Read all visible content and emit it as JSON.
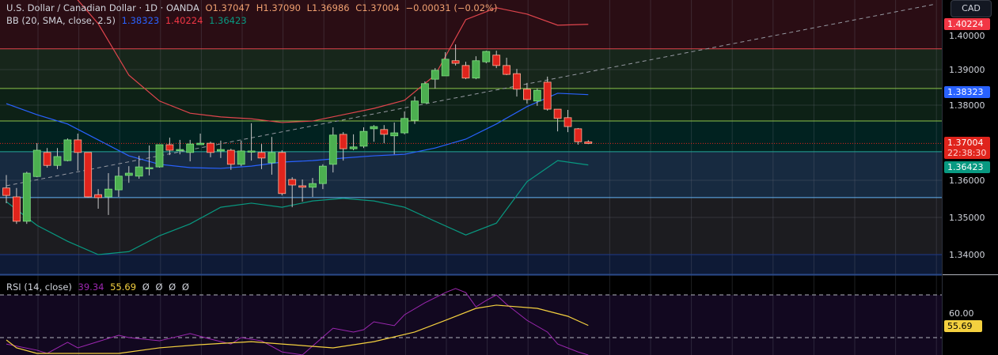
{
  "header": {
    "symbol": "U.S. Dollar / Canadian Dollar · 1D · OANDA",
    "open": "O1.37047",
    "high": "H1.37090",
    "low": "L1.36986",
    "close": "C1.37004",
    "change": "−0.00031 (−0.02%)"
  },
  "bb": {
    "label": "BB (20, SMA, close, 2.5)",
    "basis": "1.38323",
    "upper": "1.40224",
    "lower": "1.36423"
  },
  "rsi": {
    "label": "RSI (14, close)",
    "value": "39.34",
    "ma": "55.69",
    "extra": [
      "Ø",
      "Ø",
      "Ø",
      "Ø"
    ]
  },
  "axis": {
    "currency_button": "CAD",
    "ticks": [
      "1.40000",
      "1.39000",
      "1.38000",
      "1.36000",
      "1.35000",
      "1.34000"
    ],
    "rsi_tick": "60.00",
    "badges": {
      "upper": "1.40224",
      "basis": "1.38323",
      "last": "1.37004",
      "countdown": "22:38:30",
      "lower": "1.36423",
      "rsi_ma": "55.69"
    }
  },
  "colors": {
    "up": "#4caf50",
    "down": "#e0241c",
    "upper": "#e0454d",
    "basis": "#2962ff",
    "lower": "#089981",
    "rsi": "#9c27b0",
    "rsi_ma": "#f4d03f"
  },
  "chart_data": {
    "type": "candlestick",
    "price_range": [
      1.3345,
      1.4222
    ],
    "candles": [
      [
        1.358,
        1.356,
        1.3615,
        1.3539
      ],
      [
        1.3556,
        1.349,
        1.358,
        1.3483
      ],
      [
        1.349,
        1.362,
        1.3624,
        1.3483
      ],
      [
        1.3611,
        1.3682,
        1.3701,
        1.3609
      ],
      [
        1.3676,
        1.3641,
        1.3688,
        1.3635
      ],
      [
        1.3641,
        1.3665,
        1.3688,
        1.3631
      ],
      [
        1.3654,
        1.371,
        1.3714,
        1.3652
      ],
      [
        1.371,
        1.3676,
        1.3727,
        1.3627
      ],
      [
        1.3676,
        1.3556,
        1.3676,
        1.3554
      ],
      [
        1.3562,
        1.3554,
        1.3577,
        1.3524
      ],
      [
        1.3556,
        1.3577,
        1.362,
        1.3507
      ],
      [
        1.3575,
        1.3612,
        1.3637,
        1.3556
      ],
      [
        1.3614,
        1.362,
        1.3639,
        1.3594
      ],
      [
        1.3612,
        1.3637,
        1.3667,
        1.3605
      ],
      [
        1.3635,
        1.3635,
        1.3695,
        1.3614
      ],
      [
        1.3637,
        1.3697,
        1.3697,
        1.3635
      ],
      [
        1.3697,
        1.3682,
        1.3716,
        1.3669
      ],
      [
        1.3684,
        1.3684,
        1.371,
        1.3671
      ],
      [
        1.3676,
        1.3699,
        1.371,
        1.3652
      ],
      [
        1.3697,
        1.3701,
        1.3727,
        1.3697
      ],
      [
        1.3701,
        1.3676,
        1.3705,
        1.3663
      ],
      [
        1.368,
        1.3684,
        1.3708,
        1.3661
      ],
      [
        1.3682,
        1.3644,
        1.3686,
        1.3629
      ],
      [
        1.3644,
        1.368,
        1.3708,
        1.3639
      ],
      [
        1.368,
        1.368,
        1.3755,
        1.3654
      ],
      [
        1.3676,
        1.3661,
        1.3699,
        1.3631
      ],
      [
        1.3648,
        1.3676,
        1.3718,
        1.3616
      ],
      [
        1.3676,
        1.3565,
        1.3682,
        1.356
      ],
      [
        1.3603,
        1.3588,
        1.3609,
        1.3528
      ],
      [
        1.3586,
        1.3582,
        1.3603,
        1.3543
      ],
      [
        1.3582,
        1.3592,
        1.3607,
        1.3556
      ],
      [
        1.3592,
        1.3639,
        1.3644,
        1.3577
      ],
      [
        1.3644,
        1.3723,
        1.3744,
        1.3622
      ],
      [
        1.3725,
        1.3686,
        1.3731,
        1.3654
      ],
      [
        1.3686,
        1.3691,
        1.3725,
        1.3682
      ],
      [
        1.3693,
        1.3733,
        1.3744,
        1.3688
      ],
      [
        1.374,
        1.3746,
        1.375,
        1.3705
      ],
      [
        1.3738,
        1.3725,
        1.375,
        1.3701
      ],
      [
        1.3721,
        1.3729,
        1.3757,
        1.3671
      ],
      [
        1.3729,
        1.3768,
        1.3787,
        1.3725
      ],
      [
        1.3763,
        1.3815,
        1.3827,
        1.3753
      ],
      [
        1.381,
        1.3862,
        1.3868,
        1.381
      ],
      [
        1.3874,
        1.3898,
        1.3904,
        1.3849
      ],
      [
        1.3883,
        1.3928,
        1.3947,
        1.3883
      ],
      [
        1.3924,
        1.3917,
        1.3968,
        1.3911
      ],
      [
        1.3911,
        1.3877,
        1.3921,
        1.3874
      ],
      [
        1.3877,
        1.3924,
        1.3936,
        1.3874
      ],
      [
        1.3921,
        1.3949,
        1.3951,
        1.3917
      ],
      [
        1.3939,
        1.3911,
        1.3951,
        1.3904
      ],
      [
        1.3911,
        1.3887,
        1.3932,
        1.3885
      ],
      [
        1.3889,
        1.3847,
        1.3902,
        1.3827
      ],
      [
        1.3847,
        1.3819,
        1.3864,
        1.3808
      ],
      [
        1.3815,
        1.3844,
        1.3849,
        1.3802
      ],
      [
        1.3866,
        1.3793,
        1.3881,
        1.3789
      ],
      [
        1.3793,
        1.3768,
        1.3791,
        1.3733
      ],
      [
        1.377,
        1.3746,
        1.3791,
        1.3731
      ],
      [
        1.374,
        1.3705,
        1.3742,
        1.3697
      ],
      [
        1.37047,
        1.37004,
        1.3709,
        1.36986
      ]
    ],
    "bollinger": {
      "index": [
        0,
        3,
        6,
        9,
        12,
        15,
        18,
        21,
        24,
        27,
        30,
        33,
        36,
        39,
        42,
        45,
        48,
        51,
        54,
        57
      ],
      "upper": [
        1.418,
        1.416,
        1.412,
        1.4024,
        1.3885,
        1.3815,
        1.3782,
        1.3772,
        1.3767,
        1.3757,
        1.3761,
        1.3778,
        1.3795,
        1.3817,
        1.3885,
        1.4035,
        1.4067,
        1.405,
        1.402,
        1.40224
      ],
      "basis": [
        1.3808,
        1.3778,
        1.3753,
        1.371,
        1.3667,
        1.3644,
        1.3635,
        1.3633,
        1.3639,
        1.365,
        1.3654,
        1.3661,
        1.3667,
        1.3671,
        1.3688,
        1.3712,
        1.3753,
        1.38,
        1.3836,
        1.38323
      ],
      "lower": [
        1.3543,
        1.3479,
        1.3436,
        1.34,
        1.3408,
        1.3451,
        1.3483,
        1.3528,
        1.3539,
        1.3528,
        1.3545,
        1.3552,
        1.3545,
        1.3528,
        1.349,
        1.3453,
        1.3485,
        1.3597,
        1.3654,
        1.36423
      ]
    },
    "levels": [
      {
        "price": 1.3956,
        "color": "#e0454d"
      },
      {
        "price": 1.3849,
        "color": "#8bc34a"
      },
      {
        "price": 1.3761,
        "color": "#8bc34a"
      },
      {
        "price": 1.3678,
        "color": "#26a69a"
      },
      {
        "price": 1.3554,
        "color": "#64b5f6"
      },
      {
        "price": 1.34,
        "color": "#1e3a8a"
      }
    ],
    "zones": [
      "#2a0d14",
      "#17261b",
      "#0d2116",
      "#012220",
      "#172a40",
      "#1c1c20",
      "#0e1a36"
    ],
    "trendline": [
      [
        0,
        1.3586
      ],
      [
        91,
        1.4077
      ]
    ],
    "rsi_line": {
      "index": [
        0,
        3,
        4,
        6,
        7,
        11,
        12,
        15,
        18,
        20,
        22,
        23,
        25,
        27,
        29,
        32,
        34,
        35,
        36,
        38,
        39,
        41,
        43,
        44,
        45,
        46,
        47,
        48,
        49,
        51,
        53,
        54,
        56,
        57
      ],
      "values": [
        47.0,
        44.1,
        42.6,
        47.8,
        45.2,
        51.1,
        50.0,
        48.5,
        51.9,
        49.3,
        47.0,
        50.0,
        48.5,
        43.3,
        41.9,
        54.4,
        52.6,
        53.7,
        57.4,
        55.6,
        60.7,
        66.3,
        71.1,
        73.0,
        71.1,
        64.4,
        67.4,
        70.0,
        65.6,
        58.1,
        52.6,
        47.0,
        43.3,
        39.34
      ]
    },
    "rsi_ma_line": {
      "index": [
        0,
        1,
        3,
        11,
        15,
        19,
        24,
        27,
        32,
        36,
        40,
        43,
        46,
        48,
        52,
        55,
        57
      ],
      "values": [
        48.9,
        45.2,
        42.6,
        42.6,
        45.2,
        46.7,
        48.1,
        47.0,
        45.2,
        48.1,
        52.6,
        58.1,
        63.7,
        65.2,
        63.7,
        60.0,
        55.69
      ]
    },
    "rsi_levels": [
      70,
      50
    ]
  }
}
